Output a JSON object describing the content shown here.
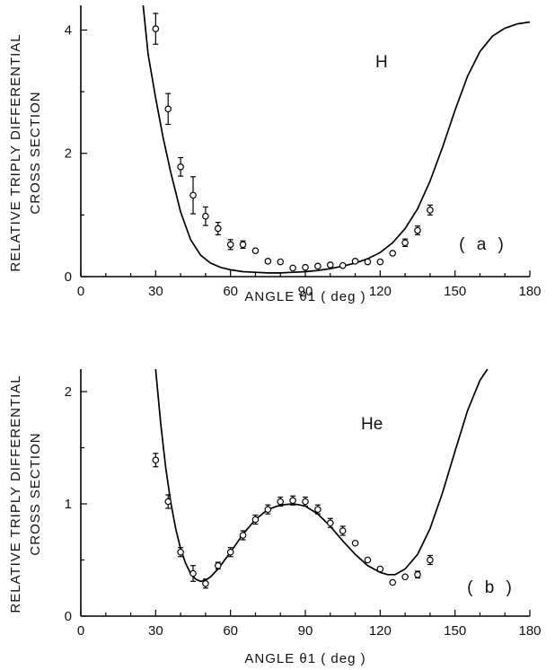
{
  "chart_data": [
    {
      "type": "scatter",
      "label": "H",
      "tag": "( a )",
      "xlabel": "ANGLE θ1 ( deg )",
      "ylabel_lines": [
        "RELATIVE TRIPLY DIFFERENTIAL",
        "CROSS SECTION"
      ],
      "xlim": [
        0,
        180
      ],
      "ylim": [
        0,
        4.4
      ],
      "xticks": [
        0,
        30,
        60,
        90,
        120,
        150,
        180
      ],
      "yticks": [
        0,
        2,
        4
      ],
      "points": [
        {
          "x": 30,
          "y": 4.02,
          "err": 0.25
        },
        {
          "x": 35,
          "y": 2.72,
          "err": 0.25
        },
        {
          "x": 40,
          "y": 1.78,
          "err": 0.15
        },
        {
          "x": 45,
          "y": 1.32,
          "err": 0.3
        },
        {
          "x": 50,
          "y": 0.98,
          "err": 0.15
        },
        {
          "x": 55,
          "y": 0.78,
          "err": 0.1
        },
        {
          "x": 60,
          "y": 0.52,
          "err": 0.08
        },
        {
          "x": 65,
          "y": 0.52,
          "err": 0.06
        },
        {
          "x": 70,
          "y": 0.42,
          "err": 0
        },
        {
          "x": 75,
          "y": 0.25,
          "err": 0
        },
        {
          "x": 80,
          "y": 0.24,
          "err": 0
        },
        {
          "x": 85,
          "y": 0.14,
          "err": 0
        },
        {
          "x": 90,
          "y": 0.15,
          "err": 0
        },
        {
          "x": 95,
          "y": 0.17,
          "err": 0
        },
        {
          "x": 100,
          "y": 0.19,
          "err": 0
        },
        {
          "x": 105,
          "y": 0.18,
          "err": 0
        },
        {
          "x": 110,
          "y": 0.25,
          "err": 0
        },
        {
          "x": 115,
          "y": 0.24,
          "err": 0
        },
        {
          "x": 120,
          "y": 0.24,
          "err": 0
        },
        {
          "x": 125,
          "y": 0.38,
          "err": 0
        },
        {
          "x": 130,
          "y": 0.55,
          "err": 0.06
        },
        {
          "x": 135,
          "y": 0.75,
          "err": 0.07
        },
        {
          "x": 140,
          "y": 1.08,
          "err": 0.08
        }
      ],
      "curve": [
        [
          25,
          4.4
        ],
        [
          27,
          3.6
        ],
        [
          30,
          2.9
        ],
        [
          33,
          2.25
        ],
        [
          36,
          1.7
        ],
        [
          40,
          1.05
        ],
        [
          44,
          0.6
        ],
        [
          48,
          0.35
        ],
        [
          52,
          0.22
        ],
        [
          56,
          0.15
        ],
        [
          60,
          0.11
        ],
        [
          65,
          0.08
        ],
        [
          70,
          0.07
        ],
        [
          75,
          0.06
        ],
        [
          80,
          0.06
        ],
        [
          85,
          0.07
        ],
        [
          90,
          0.08
        ],
        [
          95,
          0.1
        ],
        [
          100,
          0.13
        ],
        [
          105,
          0.17
        ],
        [
          110,
          0.22
        ],
        [
          115,
          0.29
        ],
        [
          120,
          0.39
        ],
        [
          125,
          0.55
        ],
        [
          130,
          0.78
        ],
        [
          135,
          1.1
        ],
        [
          140,
          1.55
        ],
        [
          145,
          2.1
        ],
        [
          150,
          2.7
        ],
        [
          155,
          3.25
        ],
        [
          160,
          3.65
        ],
        [
          165,
          3.9
        ],
        [
          170,
          4.03
        ],
        [
          175,
          4.1
        ],
        [
          180,
          4.13
        ]
      ]
    },
    {
      "type": "scatter",
      "label": "He",
      "tag": "( b )",
      "xlabel": "ANGLE θ1 ( deg )",
      "ylabel_lines": [
        "RELATIVE TRIPLY DIFFERENTIAL",
        "CROSS SECTION"
      ],
      "xlim": [
        0,
        180
      ],
      "ylim": [
        0,
        2.2
      ],
      "xticks": [
        0,
        30,
        60,
        90,
        120,
        150,
        180
      ],
      "yticks": [
        0,
        1,
        2
      ],
      "points": [
        {
          "x": 30,
          "y": 1.39,
          "err": 0.06
        },
        {
          "x": 35,
          "y": 1.02,
          "err": 0.06
        },
        {
          "x": 40,
          "y": 0.57,
          "err": 0.04
        },
        {
          "x": 45,
          "y": 0.38,
          "err": 0.07
        },
        {
          "x": 50,
          "y": 0.29,
          "err": 0.04
        },
        {
          "x": 55,
          "y": 0.45,
          "err": 0.03
        },
        {
          "x": 60,
          "y": 0.57,
          "err": 0.04
        },
        {
          "x": 65,
          "y": 0.72,
          "err": 0.04
        },
        {
          "x": 70,
          "y": 0.86,
          "err": 0.04
        },
        {
          "x": 75,
          "y": 0.95,
          "err": 0.04
        },
        {
          "x": 80,
          "y": 1.02,
          "err": 0.04
        },
        {
          "x": 85,
          "y": 1.03,
          "err": 0.04
        },
        {
          "x": 90,
          "y": 1.02,
          "err": 0.04
        },
        {
          "x": 95,
          "y": 0.95,
          "err": 0.04
        },
        {
          "x": 100,
          "y": 0.83,
          "err": 0.04
        },
        {
          "x": 105,
          "y": 0.76,
          "err": 0.04
        },
        {
          "x": 110,
          "y": 0.65,
          "err": 0
        },
        {
          "x": 115,
          "y": 0.5,
          "err": 0
        },
        {
          "x": 120,
          "y": 0.42,
          "err": 0
        },
        {
          "x": 125,
          "y": 0.3,
          "err": 0
        },
        {
          "x": 130,
          "y": 0.35,
          "err": 0
        },
        {
          "x": 135,
          "y": 0.37,
          "err": 0.03
        },
        {
          "x": 140,
          "y": 0.5,
          "err": 0.04
        }
      ],
      "curve": [
        [
          30,
          2.2
        ],
        [
          32,
          1.72
        ],
        [
          34,
          1.33
        ],
        [
          36,
          1.02
        ],
        [
          38,
          0.78
        ],
        [
          40,
          0.6
        ],
        [
          42,
          0.47
        ],
        [
          44,
          0.38
        ],
        [
          46,
          0.33
        ],
        [
          48,
          0.31
        ],
        [
          50,
          0.32
        ],
        [
          52,
          0.35
        ],
        [
          55,
          0.42
        ],
        [
          60,
          0.57
        ],
        [
          65,
          0.73
        ],
        [
          70,
          0.86
        ],
        [
          75,
          0.95
        ],
        [
          80,
          0.99
        ],
        [
          85,
          1.0
        ],
        [
          88,
          0.99
        ],
        [
          90,
          0.98
        ],
        [
          95,
          0.91
        ],
        [
          100,
          0.8
        ],
        [
          105,
          0.67
        ],
        [
          110,
          0.55
        ],
        [
          115,
          0.45
        ],
        [
          120,
          0.39
        ],
        [
          123,
          0.37
        ],
        [
          126,
          0.37
        ],
        [
          130,
          0.42
        ],
        [
          135,
          0.55
        ],
        [
          140,
          0.78
        ],
        [
          145,
          1.1
        ],
        [
          150,
          1.47
        ],
        [
          155,
          1.83
        ],
        [
          160,
          2.1
        ],
        [
          163,
          2.2
        ]
      ]
    }
  ]
}
